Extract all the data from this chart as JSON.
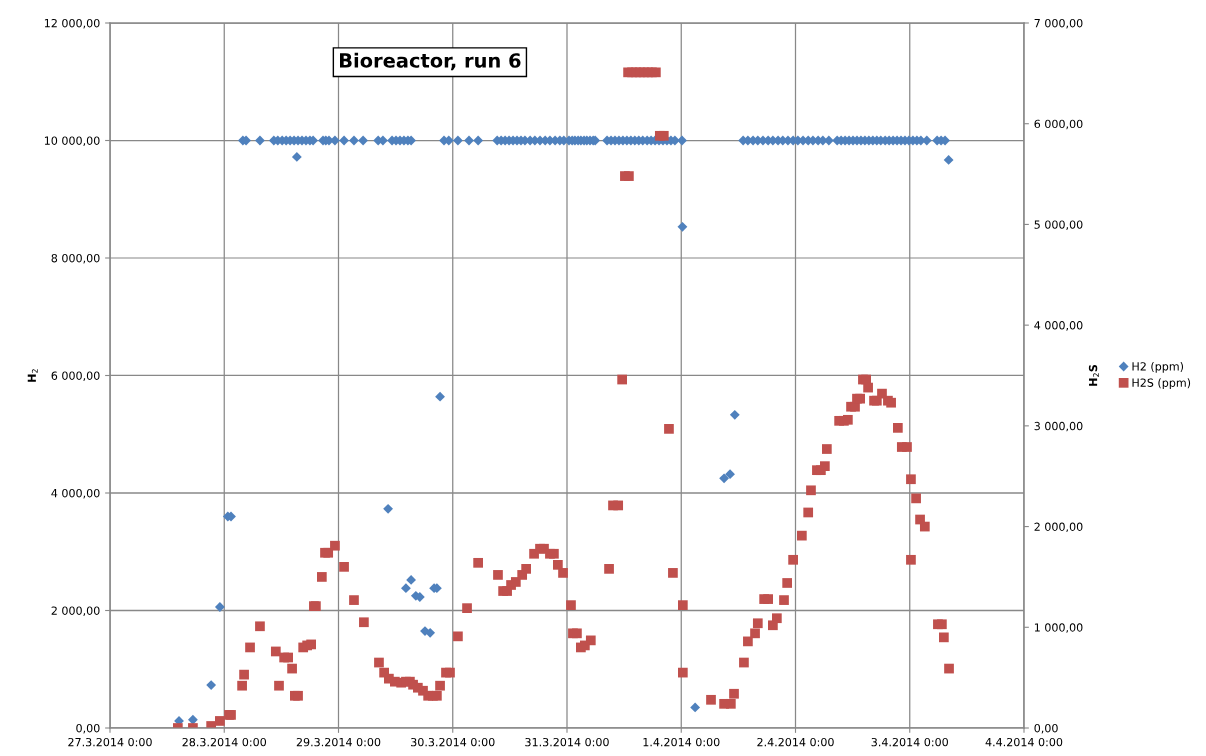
{
  "chart_data": {
    "type": "scatter",
    "title": "Bioreactor, run 6",
    "ylabel": "H$_{2}$",
    "y2label": "H$_{2}$S",
    "xlim": [
      "2014-03-27T00:00",
      "2014-04-04T00:00"
    ],
    "xticks": [
      {
        "value": "2014-03-27T00:00",
        "label": "27.3.2014 0:00"
      },
      {
        "value": "2014-03-28T00:00",
        "label": "28.3.2014 0:00"
      },
      {
        "value": "2014-03-29T00:00",
        "label": "29.3.2014 0:00"
      },
      {
        "value": "2014-03-30T00:00",
        "label": "30.3.2014 0:00"
      },
      {
        "value": "2014-03-31T00:00",
        "label": "31.3.2014 0:00"
      },
      {
        "value": "2014-04-01T00:00",
        "label": "1.4.2014 0:00"
      },
      {
        "value": "2014-04-02T00:00",
        "label": "2.4.2014 0:00"
      },
      {
        "value": "2014-04-03T00:00",
        "label": "3.4.2014 0:00"
      },
      {
        "value": "2014-04-04T00:00",
        "label": "4.4.2014 0:00"
      }
    ],
    "ylim": [
      0,
      12000
    ],
    "yticks": [
      {
        "value": 0,
        "label": "0,00"
      },
      {
        "value": 2000,
        "label": "2 000,00"
      },
      {
        "value": 4000,
        "label": "4 000,00"
      },
      {
        "value": 6000,
        "label": "6 000,00"
      },
      {
        "value": 8000,
        "label": "8 000,00"
      },
      {
        "value": 10000,
        "label": "10 000,00"
      },
      {
        "value": 12000,
        "label": "12 000,00"
      }
    ],
    "y2lim": [
      0,
      7000
    ],
    "y2ticks": [
      {
        "value": 0,
        "label": "0,00"
      },
      {
        "value": 1000,
        "label": "1 000,00"
      },
      {
        "value": 2000,
        "label": "2 000,00"
      },
      {
        "value": 3000,
        "label": "3 000,00"
      },
      {
        "value": 4000,
        "label": "4 000,00"
      },
      {
        "value": 5000,
        "label": "5 000,00"
      },
      {
        "value": 6000,
        "label": "6 000,00"
      },
      {
        "value": 7000,
        "label": "7 000,00"
      }
    ],
    "grid": true,
    "legend": "right",
    "series": [
      {
        "name": "H2 (ppm)",
        "color": "#4f81bd",
        "marker": "diamond",
        "x": [
          "2014-03-27T14:30",
          "2014-03-27T17:25",
          "2014-03-27T21:15",
          "2014-03-27T23:05",
          "2014-03-28T00:45",
          "2014-03-28T01:25",
          "2014-03-28T03:55",
          "2014-03-28T04:35",
          "2014-03-28T07:30",
          "2014-03-28T10:25",
          "2014-03-28T11:15",
          "2014-03-28T12:10",
          "2014-03-28T13:00",
          "2014-03-28T13:50",
          "2014-03-28T14:40",
          "2014-03-28T15:15",
          "2014-03-28T15:30",
          "2014-03-28T16:20",
          "2014-03-28T17:10",
          "2014-03-28T18:00",
          "2014-03-28T18:40",
          "2014-03-28T20:45",
          "2014-03-28T21:20",
          "2014-03-28T22:00",
          "2014-03-28T23:15",
          "2014-03-29T01:10",
          "2014-03-29T03:15",
          "2014-03-29T05:10",
          "2014-03-29T08:20",
          "2014-03-29T09:20",
          "2014-03-29T10:25",
          "2014-03-29T11:15",
          "2014-03-29T12:05",
          "2014-03-29T12:55",
          "2014-03-29T13:45",
          "2014-03-29T14:10",
          "2014-03-29T14:35",
          "2014-03-29T15:15",
          "2014-03-29T15:15",
          "2014-03-29T16:15",
          "2014-03-29T17:05",
          "2014-03-29T18:10",
          "2014-03-29T19:15",
          "2014-03-29T20:05",
          "2014-03-29T20:40",
          "2014-03-29T21:20",
          "2014-03-29T22:10",
          "2014-03-29T23:10",
          "2014-03-30T01:05",
          "2014-03-30T03:25",
          "2014-03-30T05:20",
          "2014-03-30T09:20",
          "2014-03-30T10:10",
          "2014-03-30T11:00",
          "2014-03-30T11:50",
          "2014-03-30T12:40",
          "2014-03-30T13:30",
          "2014-03-30T14:20",
          "2014-03-30T15:10",
          "2014-03-30T16:15",
          "2014-03-30T17:15",
          "2014-03-30T18:20",
          "2014-03-30T19:25",
          "2014-03-30T20:25",
          "2014-03-30T21:30",
          "2014-03-30T22:30",
          "2014-03-30T23:20",
          "2014-03-31T00:25",
          "2014-03-31T01:05",
          "2014-03-31T01:40",
          "2014-03-31T02:20",
          "2014-03-31T02:55",
          "2014-03-31T03:35",
          "2014-03-31T04:10",
          "2014-03-31T04:50",
          "2014-03-31T05:30",
          "2014-03-31T05:55",
          "2014-03-31T08:25",
          "2014-03-31T09:15",
          "2014-03-31T10:05",
          "2014-03-31T10:55",
          "2014-03-31T11:45",
          "2014-03-31T12:35",
          "2014-03-31T13:25",
          "2014-03-31T14:15",
          "2014-03-31T15:05",
          "2014-03-31T15:55",
          "2014-03-31T16:50",
          "2014-03-31T17:40",
          "2014-03-31T18:30",
          "2014-03-31T19:20",
          "2014-03-31T20:10",
          "2014-03-31T21:00",
          "2014-03-31T21:50",
          "2014-03-31T22:40",
          "2014-04-01T00:10",
          "2014-04-01T00:15",
          "2014-04-01T02:55",
          "2014-04-01T09:00",
          "2014-04-01T10:15",
          "2014-04-01T11:15",
          "2014-04-01T13:00",
          "2014-04-01T14:00",
          "2014-04-01T15:05",
          "2014-04-01T16:05",
          "2014-04-01T17:10",
          "2014-04-01T18:15",
          "2014-04-01T19:15",
          "2014-04-01T20:20",
          "2014-04-01T21:20",
          "2014-04-01T22:25",
          "2014-04-01T23:30",
          "2014-04-02T00:30",
          "2014-04-02T01:35",
          "2014-04-02T02:40",
          "2014-04-02T03:40",
          "2014-04-02T04:45",
          "2014-04-02T05:45",
          "2014-04-02T07:00",
          "2014-04-02T08:45",
          "2014-04-02T09:35",
          "2014-04-02T10:25",
          "2014-04-02T11:15",
          "2014-04-02T12:05",
          "2014-04-02T12:55",
          "2014-04-02T13:45",
          "2014-04-02T14:35",
          "2014-04-02T15:25",
          "2014-04-02T16:15",
          "2014-04-02T17:05",
          "2014-04-02T17:55",
          "2014-04-02T18:50",
          "2014-04-02T19:40",
          "2014-04-02T20:30",
          "2014-04-02T21:20",
          "2014-04-02T22:10",
          "2014-04-02T23:00",
          "2014-04-02T23:50",
          "2014-04-03T00:40",
          "2014-04-03T01:30",
          "2014-04-03T02:20",
          "2014-04-03T03:35",
          "2014-04-03T05:45",
          "2014-04-03T06:35",
          "2014-04-03T07:25",
          "2014-04-03T08:10"
        ],
        "values": [
          120,
          140,
          730,
          2060,
          3600,
          3600,
          10000,
          10000,
          10000,
          10000,
          10000,
          10000,
          10000,
          10000,
          10000,
          9720,
          10000,
          10000,
          10000,
          10000,
          10000,
          10000,
          10000,
          10000,
          10000,
          10000,
          10000,
          10000,
          10000,
          10000,
          3730,
          10000,
          10000,
          10000,
          10000,
          2380,
          10000,
          10000,
          2520,
          2250,
          2230,
          1650,
          1620,
          2380,
          2380,
          5640,
          10000,
          10000,
          10000,
          10000,
          10000,
          10000,
          10000,
          10000,
          10000,
          10000,
          10000,
          10000,
          10000,
          10000,
          10000,
          10000,
          10000,
          10000,
          10000,
          10000,
          10000,
          10000,
          10000,
          10000,
          10000,
          10000,
          10000,
          10000,
          10000,
          10000,
          10000,
          10000,
          10000,
          10000,
          10000,
          10000,
          10000,
          10000,
          10000,
          10000,
          10000,
          10000,
          10000,
          10000,
          10000,
          10000,
          10000,
          10000,
          10000,
          10000,
          8530,
          350,
          4250,
          4320,
          5330,
          10000,
          10000,
          10000,
          10000,
          10000,
          10000,
          10000,
          10000,
          10000,
          10000,
          10000,
          10000,
          10000,
          10000,
          10000,
          10000,
          10000,
          10000,
          10000,
          10000,
          10000,
          10000,
          10000,
          10000,
          10000,
          10000,
          10000,
          10000,
          10000,
          10000,
          10000,
          10000,
          10000,
          10000,
          10000,
          10000,
          10000,
          10000,
          10000,
          10000,
          10000,
          10000,
          10000,
          10000,
          9670
        ]
      },
      {
        "name": "H2S (ppm)",
        "color": "#c0504d",
        "marker": "square",
        "axis": "y2",
        "x": [
          "2014-03-27T14:15",
          "2014-03-27T17:25",
          "2014-03-27T21:15",
          "2014-03-27T23:05",
          "2014-03-28T01:00",
          "2014-03-28T01:25",
          "2014-03-28T03:45",
          "2014-03-28T04:10",
          "2014-03-28T05:25",
          "2014-03-28T07:30",
          "2014-03-28T10:50",
          "2014-03-28T11:30",
          "2014-03-28T12:35",
          "2014-03-28T13:25",
          "2014-03-28T14:15",
          "2014-03-28T14:50",
          "2014-03-28T15:30",
          "2014-03-28T16:35",
          "2014-03-28T17:25",
          "2014-03-28T18:15",
          "2014-03-28T18:50",
          "2014-03-28T19:15",
          "2014-03-28T20:30",
          "2014-03-28T21:10",
          "2014-03-28T21:50",
          "2014-03-28T23:15",
          "2014-03-29T01:10",
          "2014-03-29T03:15",
          "2014-03-29T05:20",
          "2014-03-29T08:30",
          "2014-03-29T09:35",
          "2014-03-29T10:35",
          "2014-03-29T11:50",
          "2014-03-29T13:10",
          "2014-03-29T14:10",
          "2014-03-29T15:00",
          "2014-03-29T15:40",
          "2014-03-29T16:40",
          "2014-03-29T17:45",
          "2014-03-29T18:50",
          "2014-03-29T19:50",
          "2014-03-29T20:40",
          "2014-03-29T21:20",
          "2014-03-29T22:35",
          "2014-03-29T23:25",
          "2014-03-30T01:05",
          "2014-03-30T03:00",
          "2014-03-30T05:20",
          "2014-03-30T09:30",
          "2014-03-30T10:35",
          "2014-03-30T11:25",
          "2014-03-30T12:15",
          "2014-03-30T13:15",
          "2014-03-30T14:35",
          "2014-03-30T15:25",
          "2014-03-30T17:05",
          "2014-03-30T18:20",
          "2014-03-30T19:10",
          "2014-03-30T20:25",
          "2014-03-30T21:15",
          "2014-03-30T22:05",
          "2014-03-30T23:10",
          "2014-03-31T00:50",
          "2014-03-31T01:15",
          "2014-03-31T02:05",
          "2014-03-31T02:55",
          "2014-03-31T03:45",
          "2014-03-31T05:00",
          "2014-03-31T08:50",
          "2014-03-31T09:40",
          "2014-03-31T10:45",
          "2014-03-31T11:35",
          "2014-03-31T12:10",
          "2014-03-31T13:00",
          "2014-03-31T12:50",
          "2014-03-31T13:40",
          "2014-03-31T14:30",
          "2014-03-31T15:20",
          "2014-03-31T16:10",
          "2014-03-31T17:00",
          "2014-03-31T17:50",
          "2014-03-31T18:40",
          "2014-03-31T19:30",
          "2014-03-31T20:20",
          "2014-03-31T21:25",
          "2014-03-31T22:15",
          "2014-04-01T00:20",
          "2014-04-01T00:20",
          "2014-04-01T06:15",
          "2014-04-01T09:00",
          "2014-04-01T10:25",
          "2014-04-01T11:05",
          "2014-04-01T13:10",
          "2014-04-01T14:00",
          "2014-04-01T15:30",
          "2014-04-01T16:05",
          "2014-04-01T17:25",
          "2014-04-01T18:15",
          "2014-04-01T19:15",
          "2014-04-01T20:05",
          "2014-04-01T21:35",
          "2014-04-01T22:15",
          "2014-04-01T23:30",
          "2014-04-02T01:20",
          "2014-04-02T02:40",
          "2014-04-02T03:15",
          "2014-04-02T04:30",
          "2014-04-02T05:20",
          "2014-04-02T06:10",
          "2014-04-02T06:35",
          "2014-04-02T09:10",
          "2014-04-02T10:10",
          "2014-04-02T11:00",
          "2014-04-02T11:40",
          "2014-04-02T12:30",
          "2014-04-02T12:55",
          "2014-04-02T13:35",
          "2014-04-02T14:10",
          "2014-04-02T14:50",
          "2014-04-02T15:15",
          "2014-04-02T16:30",
          "2014-04-02T17:05",
          "2014-04-02T18:10",
          "2014-04-02T19:25",
          "2014-04-02T20:05",
          "2014-04-02T21:30",
          "2014-04-02T22:20",
          "2014-04-02T23:25",
          "2014-04-03T00:15",
          "2014-04-03T01:20",
          "2014-04-03T02:10",
          "2014-04-03T03:10",
          "2014-04-03T00:15",
          "2014-04-03T05:55",
          "2014-04-03T06:45",
          "2014-04-03T07:10",
          "2014-04-03T08:15"
        ],
        "values": [
          0,
          0,
          20,
          70,
          130,
          130,
          420,
          530,
          800,
          1010,
          760,
          420,
          700,
          700,
          590,
          320,
          320,
          800,
          820,
          830,
          1210,
          1210,
          1500,
          1740,
          1740,
          1810,
          1600,
          1270,
          1050,
          650,
          550,
          490,
          460,
          450,
          460,
          460,
          430,
          400,
          370,
          320,
          320,
          320,
          420,
          550,
          550,
          910,
          1190,
          1640,
          1520,
          1360,
          1360,
          1420,
          1450,
          1520,
          1580,
          1730,
          1780,
          1780,
          1730,
          1730,
          1620,
          1540,
          1220,
          940,
          940,
          800,
          820,
          870,
          1580,
          2210,
          2210,
          3460,
          5480,
          5480,
          6510,
          6510,
          6510,
          6510,
          6510,
          6510,
          6510,
          6510,
          5880,
          5880,
          2970,
          1540,
          1220,
          550,
          280,
          240,
          240,
          340,
          650,
          860,
          940,
          1040,
          1280,
          1280,
          1020,
          1090,
          1270,
          1440,
          1670,
          1910,
          2140,
          2360,
          2560,
          2560,
          2600,
          2770,
          3050,
          3050,
          3060,
          3190,
          3190,
          3270,
          3270,
          3460,
          3460,
          3380,
          3250,
          3250,
          3320,
          3250,
          3230,
          2980,
          2790,
          2790,
          2470,
          2280,
          2070,
          2000,
          1670,
          1030,
          1030,
          900,
          590
        ]
      }
    ]
  }
}
